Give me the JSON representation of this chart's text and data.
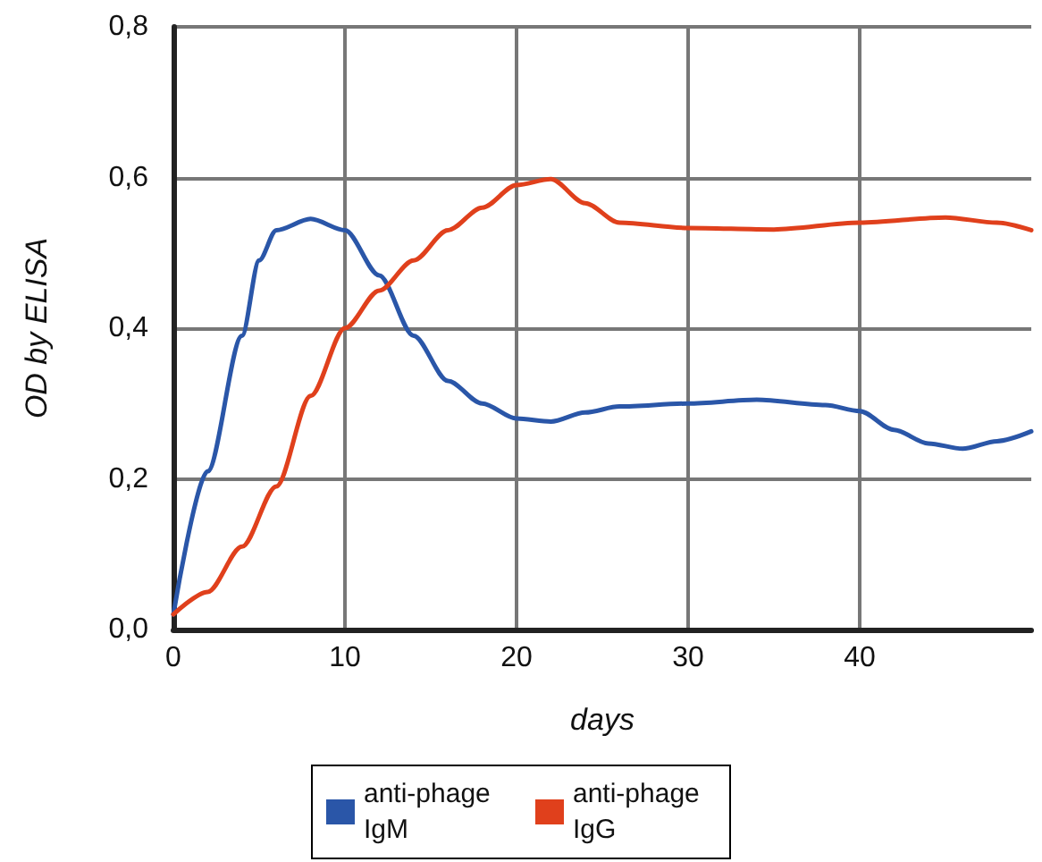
{
  "chart_data": {
    "type": "line",
    "xlabel": "days",
    "ylabel": "OD by ELISA",
    "xlim": [
      0,
      50
    ],
    "xticks": [
      0,
      10,
      20,
      30,
      40
    ],
    "ylim": [
      0,
      0.8
    ],
    "yticks": [
      {
        "value": 0,
        "label": "0,0"
      },
      {
        "value": 0.2,
        "label": "0,2"
      },
      {
        "value": 0.4,
        "label": "0,4"
      },
      {
        "value": 0.6,
        "label": "0,6"
      },
      {
        "value": 0.8,
        "label": "0,8"
      }
    ],
    "grid": true,
    "legend": "bottom",
    "marker": "none",
    "line_style": "solid",
    "series": [
      {
        "name": "anti-phage IgM",
        "color": "#2a56a8",
        "x": [
          0,
          2,
          4,
          5,
          6,
          8,
          10,
          12,
          14,
          16,
          18,
          20,
          22,
          24,
          26,
          30,
          34,
          38,
          40,
          42,
          44,
          46,
          48,
          50
        ],
        "values": [
          0.02,
          0.21,
          0.39,
          0.49,
          0.53,
          0.545,
          0.53,
          0.47,
          0.39,
          0.33,
          0.3,
          0.28,
          0.276,
          0.288,
          0.296,
          0.3,
          0.305,
          0.298,
          0.29,
          0.265,
          0.247,
          0.24,
          0.25,
          0.263
        ]
      },
      {
        "name": "anti-phage IgG",
        "color": "#e0401c",
        "x": [
          0,
          2,
          4,
          6,
          8,
          10,
          12,
          14,
          16,
          18,
          20,
          22,
          24,
          26,
          30,
          35,
          40,
          45,
          48,
          50
        ],
        "values": [
          0.02,
          0.05,
          0.11,
          0.19,
          0.31,
          0.4,
          0.45,
          0.49,
          0.53,
          0.56,
          0.59,
          0.598,
          0.566,
          0.54,
          0.533,
          0.531,
          0.54,
          0.547,
          0.54,
          0.53
        ]
      }
    ]
  }
}
